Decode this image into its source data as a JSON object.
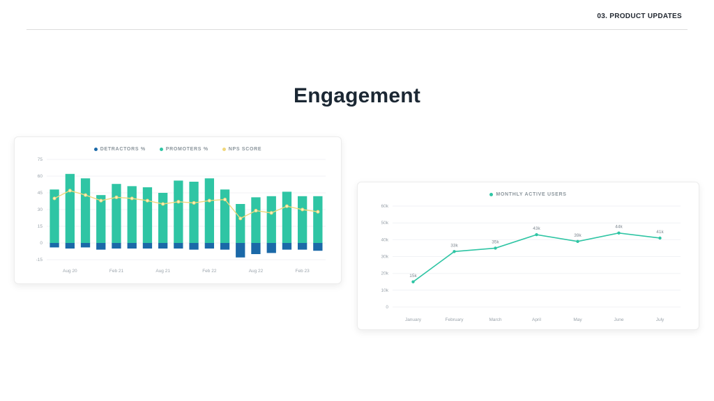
{
  "header": {
    "slide_tag": "03. PRODUCT UPDATES"
  },
  "title": "Engagement",
  "colors": {
    "detractors_blue": "#1b69a8",
    "promoters_teal": "#2fc5a4",
    "nps_yellow": "#f0d77b",
    "grid": "#f0f2f5",
    "tick_text": "#9aa3ab"
  },
  "chart_data": [
    {
      "type": "bar",
      "name": "nps-breakdown-chart",
      "title": "",
      "legend": [
        "DETRACTORS %",
        "PROMOTERS %",
        "NPS SCORE"
      ],
      "legend_colors": [
        "#1b69a8",
        "#2fc5a4",
        "#f0d77b"
      ],
      "legend_position": "top",
      "grid": true,
      "x_labels": [
        "Aug 20",
        "Feb 21",
        "Aug 21",
        "Feb 22",
        "Aug 22",
        "Feb 23"
      ],
      "ylim": [
        -15,
        75
      ],
      "yticks": [
        75,
        60,
        45,
        30,
        15,
        0,
        -15
      ],
      "series": [
        {
          "name": "PROMOTERS %",
          "type": "bar",
          "color": "#2fc5a4",
          "values": [
            48,
            62,
            58,
            43,
            53,
            51,
            50,
            45,
            56,
            55,
            58,
            48,
            35,
            41,
            42,
            46,
            42,
            42
          ]
        },
        {
          "name": "DETRACTORS %",
          "type": "bar",
          "color": "#1b69a8",
          "values": [
            -4,
            -5,
            -4,
            -6,
            -5,
            -5,
            -5,
            -5,
            -5,
            -6,
            -5,
            -6,
            -13,
            -10,
            -9,
            -6,
            -6,
            -7
          ]
        },
        {
          "name": "NPS SCORE",
          "type": "line",
          "color": "#f0d77b",
          "values": [
            40,
            47,
            43,
            38,
            41,
            40,
            38,
            35,
            37,
            36,
            38,
            39,
            22,
            29,
            27,
            33,
            30,
            28
          ]
        }
      ]
    },
    {
      "type": "line",
      "name": "monthly-active-users-chart",
      "title": "",
      "legend": [
        "MONTHLY ACTIVE USERS"
      ],
      "legend_colors": [
        "#2fc5a4"
      ],
      "legend_position": "top",
      "grid": true,
      "line_color": "#2fc5a4",
      "categories": [
        "January",
        "February",
        "March",
        "April",
        "May",
        "June",
        "July"
      ],
      "values": [
        15,
        33,
        35,
        43,
        39,
        44,
        41
      ],
      "point_labels": [
        "15k",
        "33k",
        "35k",
        "43k",
        "39k",
        "44k",
        "41k"
      ],
      "ylim": [
        0,
        60
      ],
      "ytick_labels": [
        "60k",
        "50k",
        "40k",
        "30k",
        "20k",
        "10k",
        "0"
      ],
      "ytick_values": [
        60,
        50,
        40,
        30,
        20,
        10,
        0
      ]
    }
  ]
}
